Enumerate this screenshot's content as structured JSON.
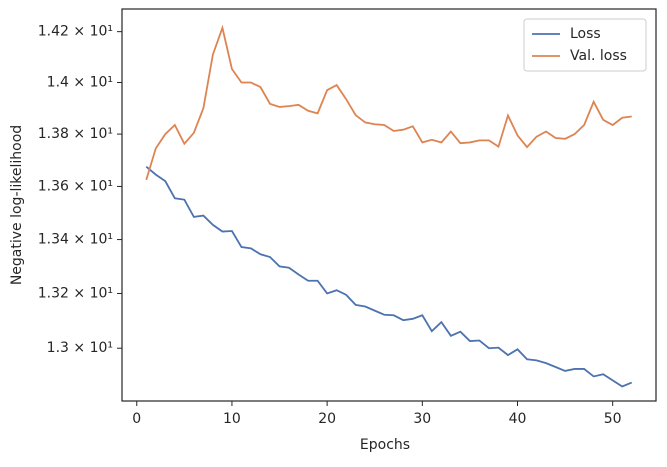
{
  "chart_data": {
    "type": "line",
    "xlabel": "Epochs",
    "ylabel": "Negative log-likelihood",
    "x": [
      1,
      2,
      3,
      4,
      5,
      6,
      7,
      8,
      9,
      10,
      11,
      12,
      13,
      14,
      15,
      16,
      17,
      18,
      19,
      20,
      21,
      22,
      23,
      24,
      25,
      26,
      27,
      28,
      29,
      30,
      31,
      32,
      33,
      34,
      35,
      36,
      37,
      38,
      39,
      40,
      41,
      42,
      43,
      44,
      45,
      46,
      47,
      48,
      49,
      50,
      51,
      52
    ],
    "series": [
      {
        "name": "Loss",
        "color": "#4c72b0",
        "values": [
          13.675,
          13.645,
          13.62,
          13.555,
          13.55,
          13.485,
          13.49,
          13.455,
          13.43,
          13.432,
          13.372,
          13.367,
          13.345,
          13.335,
          13.3,
          13.295,
          13.27,
          13.247,
          13.247,
          13.2,
          13.212,
          13.195,
          13.158,
          13.152,
          13.137,
          13.122,
          13.12,
          13.102,
          13.107,
          13.12,
          13.062,
          13.095,
          13.045,
          13.06,
          13.026,
          13.028,
          13.0,
          13.002,
          12.975,
          12.996,
          12.96,
          12.956,
          12.946,
          12.932,
          12.918,
          12.925,
          12.925,
          12.898,
          12.906,
          12.884,
          12.862,
          12.876
        ]
      },
      {
        "name": "Val. loss",
        "color": "#dd8452",
        "values": [
          13.625,
          13.745,
          13.8,
          13.835,
          13.763,
          13.805,
          13.9,
          14.11,
          14.215,
          14.053,
          14.0,
          14.0,
          13.982,
          13.917,
          13.905,
          13.908,
          13.913,
          13.89,
          13.88,
          13.97,
          13.99,
          13.935,
          13.873,
          13.845,
          13.838,
          13.835,
          13.812,
          13.817,
          13.83,
          13.768,
          13.778,
          13.768,
          13.81,
          13.765,
          13.768,
          13.776,
          13.776,
          13.752,
          13.872,
          13.795,
          13.75,
          13.79,
          13.81,
          13.785,
          13.782,
          13.8,
          13.835,
          13.925,
          13.855,
          13.835,
          13.863,
          13.868
        ]
      }
    ],
    "xlim": [
      -1.55,
      54.55
    ],
    "xticks": [
      0,
      10,
      20,
      30,
      40,
      50
    ],
    "ylim": [
      12.81,
      14.29
    ],
    "yscale": "log",
    "yticks": [
      {
        "value": 13.0,
        "label": "1.3 × 10¹"
      },
      {
        "value": 13.2,
        "label": "1.32 × 10¹"
      },
      {
        "value": 13.4,
        "label": "1.34 × 10¹"
      },
      {
        "value": 13.6,
        "label": "1.36 × 10¹"
      },
      {
        "value": 13.8,
        "label": "1.38 × 10¹"
      },
      {
        "value": 14.0,
        "label": "1.4 × 10¹"
      },
      {
        "value": 14.2,
        "label": "1.42 × 10¹"
      }
    ],
    "legend": "upper right"
  }
}
